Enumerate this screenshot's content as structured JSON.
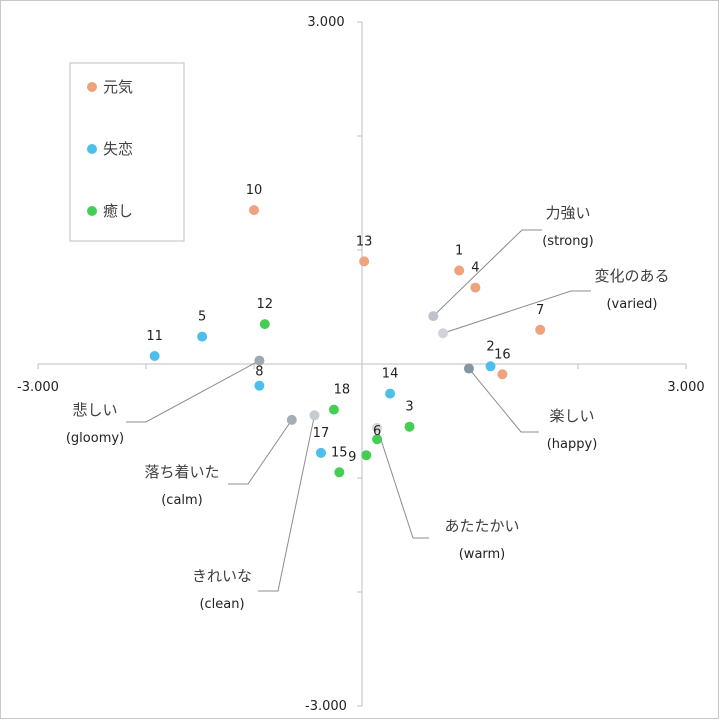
{
  "chart_data": {
    "type": "scatter",
    "title": "",
    "xlabel": "",
    "ylabel": "",
    "xlim": [
      -3.0,
      3.0
    ],
    "ylim": [
      -3.0,
      3.0
    ],
    "x_tick_labels": [
      "-3.000",
      "3.000"
    ],
    "y_tick_labels": [
      "3.000",
      "-3.000"
    ],
    "grid": false,
    "legend_position": "top-left",
    "series": [
      {
        "name": "元気",
        "color": "#eea27e",
        "points": [
          {
            "label": "10",
            "x": -1.0,
            "y": 1.35
          },
          {
            "label": "13",
            "x": 0.02,
            "y": 0.9
          },
          {
            "label": "1",
            "x": 0.9,
            "y": 0.82
          },
          {
            "label": "4",
            "x": 1.05,
            "y": 0.67
          },
          {
            "label": "7",
            "x": 1.65,
            "y": 0.3
          },
          {
            "label": "16",
            "x": 1.3,
            "y": -0.09
          }
        ]
      },
      {
        "name": "失恋",
        "color": "#4dbfea",
        "points": [
          {
            "label": "5",
            "x": -1.48,
            "y": 0.24
          },
          {
            "label": "11",
            "x": -1.92,
            "y": 0.07
          },
          {
            "label": "8",
            "x": -0.95,
            "y": -0.19
          },
          {
            "label": "2",
            "x": 1.19,
            "y": -0.02
          },
          {
            "label": "14",
            "x": 0.26,
            "y": -0.26
          },
          {
            "label": "17",
            "x": -0.38,
            "y": -0.78
          }
        ]
      },
      {
        "name": "癒し",
        "color": "#46cd56",
        "points": [
          {
            "label": "12",
            "x": -0.9,
            "y": 0.35
          },
          {
            "label": "18",
            "x": -0.26,
            "y": -0.4
          },
          {
            "label": "3",
            "x": 0.44,
            "y": -0.55
          },
          {
            "label": "6",
            "x": 0.14,
            "y": -0.66
          },
          {
            "label": "9",
            "x": 0.04,
            "y": -0.8
          },
          {
            "label": "15",
            "x": -0.21,
            "y": -0.95
          }
        ]
      }
    ],
    "attributes": [
      {
        "ja": "力強い",
        "en": "(strong)",
        "color": "#bfc4cc",
        "x": 0.66,
        "y": 0.42
      },
      {
        "ja": "変化のある",
        "en": "(varied)",
        "color": "#d0d4d9",
        "x": 0.75,
        "y": 0.27
      },
      {
        "ja": "楽しい",
        "en": "(happy)",
        "color": "#8895a3",
        "x": 0.99,
        "y": -0.04
      },
      {
        "ja": "悲しい",
        "en": "(gloomy)",
        "color": "#9ea8b2",
        "x": -0.95,
        "y": 0.03
      },
      {
        "ja": "落ち着いた",
        "en": "(calm)",
        "color": "#a5adb7",
        "x": -0.65,
        "y": -0.49
      },
      {
        "ja": "きれいな",
        "en": "(clean)",
        "color": "#c7ccd2",
        "x": -0.44,
        "y": -0.45
      },
      {
        "ja": "あたたかい",
        "en": "(warm)",
        "color": "#d3d7dc",
        "x": 0.14,
        "y": -0.56
      }
    ]
  }
}
